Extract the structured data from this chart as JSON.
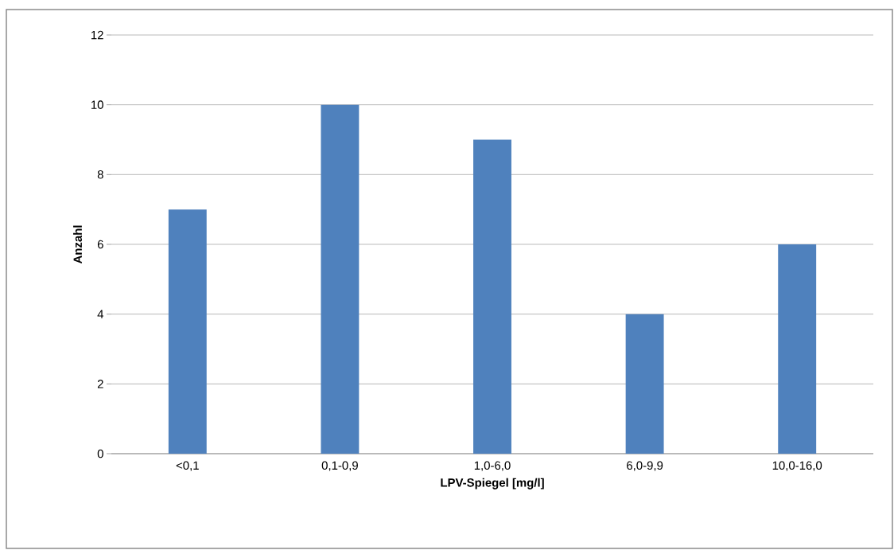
{
  "chart_data": {
    "type": "bar",
    "xlabel": "LPV-Spiegel [mg/l]",
    "ylabel": "Anzahl",
    "categories": [
      "<0,1",
      "0,1-0,9",
      "1,0-6,0",
      "6,0-9,9",
      "10,0-16,0"
    ],
    "values": [
      7,
      10,
      9,
      4,
      6
    ],
    "color": "#4f81bd",
    "ylim": [
      0,
      12
    ],
    "yticks": [
      0,
      2,
      4,
      6,
      8,
      10,
      12
    ],
    "grid": "y"
  }
}
